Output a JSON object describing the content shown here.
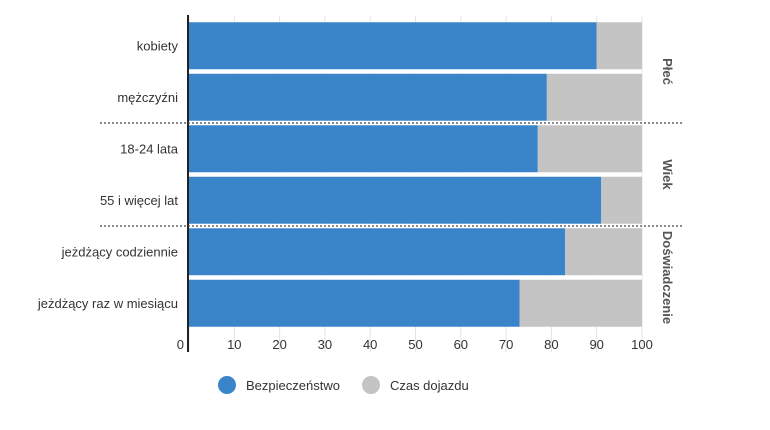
{
  "chart_data": {
    "type": "bar",
    "orientation": "horizontal",
    "stacked": true,
    "categories": [
      "kobiety",
      "mężczyźni",
      "18-24 lata",
      "55 i więcej lat",
      "jeżdżący codziennie",
      "jeżdżący raz w miesiącu"
    ],
    "groups": [
      {
        "label": "Płeć",
        "categories": [
          "kobiety",
          "mężczyźni"
        ]
      },
      {
        "label": "Wiek",
        "categories": [
          "18-24 lata",
          "55 i więcej lat"
        ]
      },
      {
        "label": "Doświadczenie",
        "categories": [
          "jeżdżący codziennie",
          "jeżdżący raz w miesiącu"
        ]
      }
    ],
    "series": [
      {
        "name": "Bezpieczeństwo",
        "color": "#3a85c9",
        "values": [
          90,
          79,
          77,
          91,
          83,
          73
        ]
      },
      {
        "name": "Czas dojazdu",
        "color": "#c4c4c4",
        "values": [
          10,
          21,
          23,
          9,
          17,
          27
        ]
      }
    ],
    "xlim": [
      0,
      100
    ],
    "xticks": [
      "0",
      "10",
      "20",
      "30",
      "40",
      "50",
      "60",
      "70",
      "80",
      "90",
      "100"
    ],
    "grid": true,
    "legend_position": "bottom"
  }
}
